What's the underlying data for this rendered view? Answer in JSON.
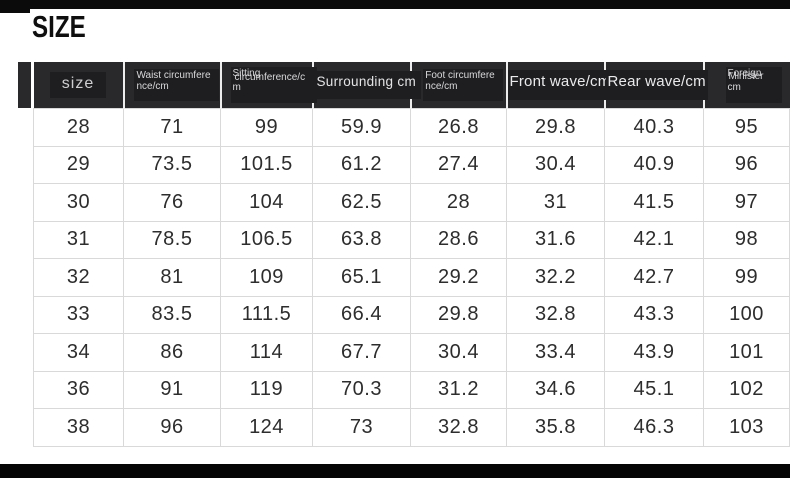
{
  "page": {
    "title": "SIZE"
  },
  "colors": {
    "header_bg": "#29292c",
    "header_overlay_box": "#1e1e21",
    "header_text": "#d6d6d8",
    "header_divider": "#ededed",
    "grid_line": "#d9d9d9",
    "body_text": "#2d2d2e",
    "top_bar": "#0b0b0c",
    "bottom_bar": "#050505",
    "background": "#ffffff"
  },
  "chart_data": {
    "type": "table",
    "title": "SIZE",
    "units": "cm",
    "columns": [
      {
        "id": "size",
        "full": "size",
        "label": "size",
        "variant": "size"
      },
      {
        "id": "waist",
        "full": "Waist circumference/cm",
        "lines": [
          "Waist circumfere",
          "nce/cm"
        ],
        "variant": "small"
      },
      {
        "id": "sitting",
        "full": "Sitting circumference/cm",
        "overlap": [
          "Sitting",
          "circumference/c"
        ],
        "tail": "m",
        "variant": "small"
      },
      {
        "id": "surrounding",
        "full": "Surrounding cm",
        "label": "Surrounding cm",
        "variant": "medium"
      },
      {
        "id": "foot",
        "full": "Foot circumference/cm",
        "lines": [
          "Foot circumfere",
          "nce/cm"
        ],
        "variant": "small"
      },
      {
        "id": "front-wave",
        "full": "Front wave/cm",
        "label": "Front wave/cm",
        "variant": "large"
      },
      {
        "id": "rear-wave",
        "full": "Rear wave/cm",
        "label": "Rear wave/cm",
        "variant": "large"
      },
      {
        "id": "foreign-minister",
        "full": "Foreign Minister cm",
        "overlap": [
          "Foreign",
          "Minister"
        ],
        "tail": "cm",
        "variant": "small"
      }
    ],
    "rows": [
      [
        "28",
        "71",
        "99",
        "59.9",
        "26.8",
        "29.8",
        "40.3",
        "95"
      ],
      [
        "29",
        "73.5",
        "101.5",
        "61.2",
        "27.4",
        "30.4",
        "40.9",
        "96"
      ],
      [
        "30",
        "76",
        "104",
        "62.5",
        "28",
        "31",
        "41.5",
        "97"
      ],
      [
        "31",
        "78.5",
        "106.5",
        "63.8",
        "28.6",
        "31.6",
        "42.1",
        "98"
      ],
      [
        "32",
        "81",
        "109",
        "65.1",
        "29.2",
        "32.2",
        "42.7",
        "99"
      ],
      [
        "33",
        "83.5",
        "111.5",
        "66.4",
        "29.8",
        "32.8",
        "43.3",
        "100"
      ],
      [
        "34",
        "86",
        "114",
        "67.7",
        "30.4",
        "33.4",
        "43.9",
        "101"
      ],
      [
        "36",
        "91",
        "119",
        "70.3",
        "31.2",
        "34.6",
        "45.1",
        "102"
      ],
      [
        "38",
        "96",
        "124",
        "73",
        "32.8",
        "35.8",
        "46.3",
        "103"
      ]
    ]
  }
}
